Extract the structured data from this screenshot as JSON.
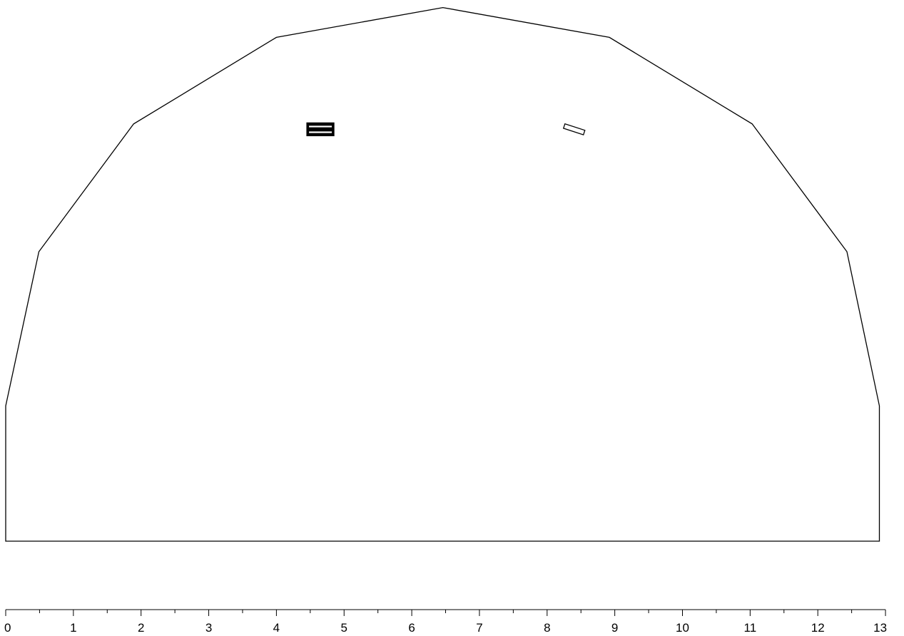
{
  "diagram": {
    "type": "cross-section-outline",
    "outline_color": "#000000",
    "background": "#ffffff",
    "outline_vertices": [
      [
        0.0,
        2.0
      ],
      [
        0.49,
        4.28
      ],
      [
        1.89,
        6.17
      ],
      [
        4.0,
        7.45
      ],
      [
        6.46,
        7.89
      ],
      [
        8.92,
        7.45
      ],
      [
        11.03,
        6.17
      ],
      [
        12.43,
        4.28
      ],
      [
        12.91,
        2.0
      ],
      [
        12.91,
        0.0
      ],
      [
        0.0,
        0.0
      ]
    ],
    "markers": [
      {
        "name": "filled-marker",
        "style": "filled",
        "center": [
          4.65,
          6.09
        ],
        "width": 0.4,
        "height": 0.19,
        "angle_deg": 0
      },
      {
        "name": "hollow-marker",
        "style": "hollow",
        "center": [
          8.4,
          6.09
        ],
        "width": 0.31,
        "height": 0.07,
        "angle_deg": -18
      }
    ]
  },
  "ruler": {
    "min": 0,
    "max": 13,
    "minor_step": 0.5,
    "tick_labels": [
      "0",
      "1",
      "2",
      "3",
      "4",
      "5",
      "6",
      "7",
      "8",
      "9",
      "10",
      "11",
      "12",
      "13"
    ]
  }
}
